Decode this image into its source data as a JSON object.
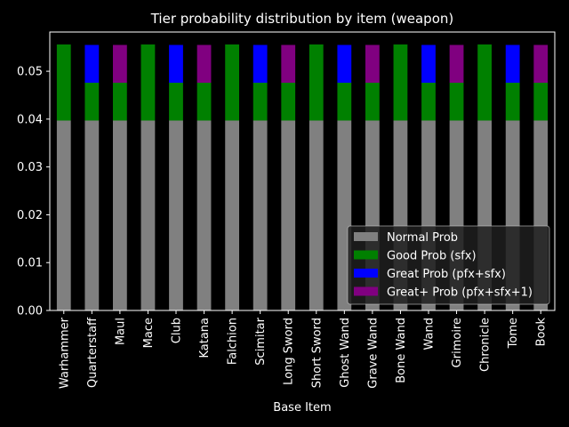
{
  "chart_data": {
    "type": "bar",
    "stacked": true,
    "title": "Tier probability distribution by item (weapon)",
    "xlabel": "Base Item",
    "ylabel": "",
    "ylim": [
      0,
      0.0582
    ],
    "yticks": [
      "0.00",
      "0.01",
      "0.02",
      "0.03",
      "0.04",
      "0.05"
    ],
    "grid": false,
    "legend_position": "lower-right",
    "categories": [
      "Warhammer",
      "Quarterstaff",
      "Maul",
      "Mace",
      "Club",
      "Katana",
      "Falchion",
      "Scimitar",
      "Long Sword",
      "Short Sword",
      "Ghost Wand",
      "Grave Wand",
      "Bone Wand",
      "Wand",
      "Grimoire",
      "Chronicle",
      "Tome",
      "Book"
    ],
    "series": [
      {
        "name": "Normal Prob",
        "color": "#808080",
        "values": [
          0.0397,
          0.0397,
          0.0397,
          0.0397,
          0.0397,
          0.0397,
          0.0397,
          0.0397,
          0.0397,
          0.0397,
          0.0397,
          0.0397,
          0.0397,
          0.0397,
          0.0397,
          0.0397,
          0.0397,
          0.0397
        ]
      },
      {
        "name": "Good Prob (sfx)",
        "color": "#008000",
        "values": [
          0.0159,
          0.0079,
          0.0079,
          0.0159,
          0.0079,
          0.0079,
          0.0159,
          0.0079,
          0.0079,
          0.0159,
          0.0079,
          0.0079,
          0.0159,
          0.0079,
          0.0079,
          0.0159,
          0.0079,
          0.0079
        ]
      },
      {
        "name": "Great Prob (pfx+sfx)",
        "color": "#0000ff",
        "values": [
          0,
          0.0079,
          0,
          0,
          0.0079,
          0,
          0,
          0.0079,
          0,
          0,
          0.0079,
          0,
          0,
          0.0079,
          0,
          0,
          0.0079,
          0
        ]
      },
      {
        "name": "Great+ Prob (pfx+sfx+1)",
        "color": "#800080",
        "values": [
          0,
          0,
          0.0079,
          0,
          0,
          0.0079,
          0,
          0,
          0.0079,
          0,
          0,
          0.0079,
          0,
          0,
          0.0079,
          0,
          0,
          0.0079
        ]
      }
    ]
  }
}
